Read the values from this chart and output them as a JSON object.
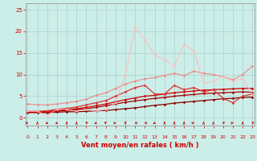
{
  "background_color": "#cceee8",
  "grid_color": "#aacccc",
  "xlabel": "Vent moyen/en rafales ( km/h )",
  "xlabel_color": "#cc0000",
  "tick_color": "#cc0000",
  "x_ticks": [
    0,
    1,
    2,
    3,
    4,
    5,
    6,
    7,
    8,
    9,
    10,
    11,
    12,
    13,
    14,
    15,
    16,
    17,
    18,
    19,
    20,
    21,
    22,
    23
  ],
  "y_ticks": [
    0,
    5,
    10,
    15,
    20,
    25
  ],
  "xlim": [
    -0.2,
    23.2
  ],
  "ylim": [
    -1.8,
    26.5
  ],
  "lines": [
    {
      "x": [
        0,
        1,
        2,
        3,
        4,
        5,
        6,
        7,
        8,
        9,
        10,
        11,
        12,
        13,
        14,
        15,
        16,
        17,
        18,
        19,
        20,
        21,
        22,
        23
      ],
      "y": [
        1.2,
        1.2,
        1.2,
        1.3,
        1.4,
        1.4,
        1.5,
        1.6,
        1.7,
        1.9,
        2.1,
        2.3,
        2.6,
        2.9,
        3.1,
        3.4,
        3.6,
        3.8,
        4.0,
        4.2,
        4.4,
        4.5,
        4.7,
        4.8
      ],
      "color": "#880000",
      "alpha": 1.0,
      "lw": 0.9,
      "marker": "D",
      "ms": 1.8
    },
    {
      "x": [
        0,
        1,
        2,
        3,
        4,
        5,
        6,
        7,
        8,
        9,
        10,
        11,
        12,
        13,
        14,
        15,
        16,
        17,
        18,
        19,
        20,
        21,
        22,
        23
      ],
      "y": [
        1.3,
        1.3,
        1.3,
        1.5,
        1.7,
        1.9,
        2.1,
        2.4,
        2.8,
        3.2,
        3.6,
        3.9,
        4.2,
        4.5,
        4.7,
        5.0,
        5.2,
        5.4,
        5.6,
        5.7,
        5.8,
        5.9,
        6.0,
        5.9
      ],
      "color": "#aa0000",
      "alpha": 1.0,
      "lw": 0.9,
      "marker": "D",
      "ms": 1.8
    },
    {
      "x": [
        0,
        1,
        2,
        3,
        4,
        5,
        6,
        7,
        8,
        9,
        10,
        11,
        12,
        13,
        14,
        15,
        16,
        17,
        18,
        19,
        20,
        21,
        22,
        23
      ],
      "y": [
        1.4,
        1.4,
        1.5,
        1.7,
        1.9,
        2.1,
        2.4,
        2.8,
        3.2,
        3.7,
        4.2,
        4.6,
        5.0,
        5.2,
        5.5,
        5.8,
        6.0,
        6.2,
        6.4,
        6.5,
        6.6,
        6.7,
        6.8,
        6.8
      ],
      "color": "#cc0000",
      "alpha": 1.0,
      "lw": 0.9,
      "marker": "D",
      "ms": 1.8
    },
    {
      "x": [
        0,
        1,
        2,
        3,
        4,
        5,
        6,
        7,
        8,
        9,
        10,
        11,
        12,
        13,
        14,
        15,
        16,
        17,
        18,
        19,
        20,
        21,
        22,
        23
      ],
      "y": [
        1.5,
        1.5,
        1.6,
        2.0,
        2.2,
        2.5,
        3.0,
        3.5,
        4.0,
        5.0,
        6.0,
        7.0,
        7.5,
        5.5,
        5.5,
        7.5,
        6.5,
        7.0,
        6.0,
        6.5,
        4.5,
        3.5,
        5.0,
        5.5
      ],
      "color": "#dd3333",
      "alpha": 1.0,
      "lw": 0.9,
      "marker": "D",
      "ms": 1.8
    },
    {
      "x": [
        0,
        1,
        2,
        3,
        4,
        5,
        6,
        7,
        8,
        9,
        10,
        11,
        12,
        13,
        14,
        15,
        16,
        17,
        18,
        19,
        20,
        21,
        22,
        23
      ],
      "y": [
        3.2,
        3.0,
        3.0,
        3.2,
        3.5,
        3.8,
        4.3,
        5.2,
        5.8,
        6.8,
        7.8,
        8.5,
        9.0,
        9.3,
        9.8,
        10.3,
        9.8,
        10.8,
        10.3,
        10.0,
        9.5,
        8.8,
        10.0,
        12.0
      ],
      "color": "#ee8888",
      "alpha": 0.9,
      "lw": 0.9,
      "marker": "D",
      "ms": 1.8
    },
    {
      "x": [
        0,
        1,
        2,
        3,
        4,
        5,
        6,
        7,
        8,
        9,
        10,
        11,
        12,
        13,
        14,
        15,
        16,
        17,
        18,
        19,
        20,
        21,
        22,
        23
      ],
      "y": [
        1.5,
        1.5,
        0.5,
        2.0,
        2.0,
        1.5,
        2.0,
        1.5,
        2.0,
        3.5,
        10.0,
        21.0,
        18.0,
        14.5,
        13.5,
        12.0,
        17.0,
        15.5,
        8.0,
        8.5,
        9.5,
        8.5,
        9.0,
        5.5
      ],
      "color": "#ffbbbb",
      "alpha": 0.8,
      "lw": 0.9,
      "marker": "D",
      "ms": 1.8
    }
  ],
  "wind_dirs": [
    90,
    0,
    225,
    225,
    0,
    0,
    45,
    225,
    315,
    90,
    180,
    270,
    270,
    225,
    0,
    0,
    0,
    90,
    0,
    0,
    45,
    90,
    0,
    45
  ],
  "arrow_color": "#cc0000"
}
